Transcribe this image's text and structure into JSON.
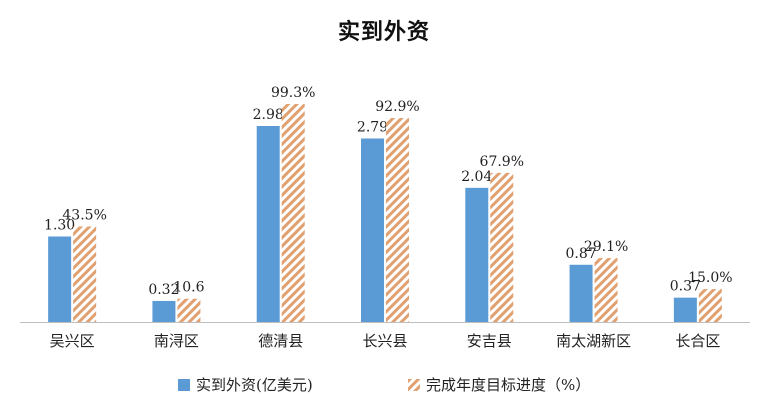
{
  "chart_data": {
    "type": "bar",
    "title": "实到外资",
    "categories": [
      "吴兴区",
      "南浔区",
      "德清县",
      "长兴县",
      "安吉县",
      "南太湖新区",
      "长合区"
    ],
    "series": [
      {
        "name": "实到外资(亿美元)",
        "values": [
          1.3,
          0.32,
          2.98,
          2.79,
          2.04,
          0.87,
          0.37
        ],
        "labels": [
          "1.30",
          "0.32",
          "2.98",
          "2.79",
          "2.04",
          "0.87",
          "0.37"
        ],
        "color": "#5B9BD5",
        "pattern": "solid"
      },
      {
        "name": "完成年度目标进度（%）",
        "values": [
          43.5,
          10.6,
          99.3,
          92.9,
          67.9,
          29.1,
          15.0
        ],
        "labels": [
          "43.5%",
          "10.6",
          "99.3%",
          "92.9%",
          "67.9%",
          "29.1%",
          "15.0%"
        ],
        "color": "#E0A070",
        "pattern": "diagonal-hatch"
      }
    ],
    "xlabel": "",
    "ylabel": "",
    "y_axis_visible": false,
    "grid": false,
    "legend_position": "bottom"
  }
}
